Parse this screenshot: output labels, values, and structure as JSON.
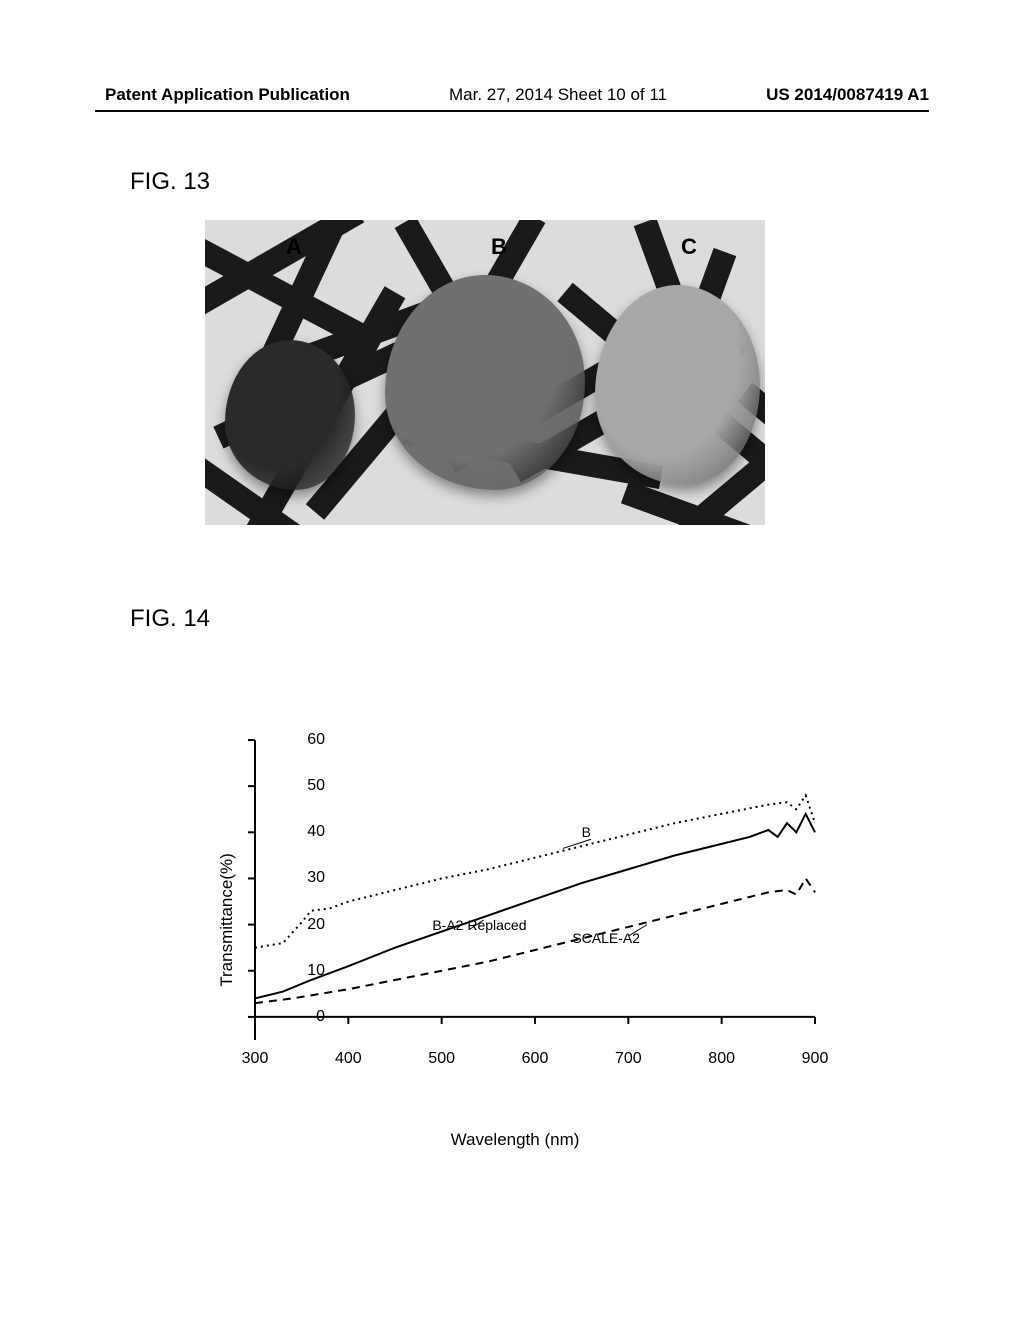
{
  "header": {
    "left": "Patent Application Publication",
    "center": "Mar. 27, 2014  Sheet 10 of 11",
    "right": "US 2014/0087419 A1"
  },
  "fig13": {
    "label": "FIG. 13",
    "photo_labels": {
      "a": "A",
      "b": "B",
      "c": "C"
    },
    "organ_colors": {
      "a": "#2a2a2a",
      "b": "#707070",
      "c": "#a8a8a8"
    },
    "mesh_color": "#1a1a1a",
    "bg_color": "#dcdcdc"
  },
  "fig14": {
    "label": "FIG. 14",
    "ylabel": "Transmittance(%)",
    "xlabel": "Wavelength (nm)",
    "xlim": [
      300,
      900
    ],
    "ylim": [
      -5,
      60
    ],
    "xticks": [
      300,
      400,
      500,
      600,
      700,
      800,
      900
    ],
    "yticks": [
      0,
      10,
      20,
      30,
      40,
      50,
      60
    ],
    "axis_color": "#000000",
    "background_color": "#ffffff",
    "series": {
      "B": {
        "label": "B",
        "color": "#000000",
        "dash": "2,4",
        "width": 2,
        "data": [
          [
            300,
            15
          ],
          [
            330,
            16
          ],
          [
            350,
            20.5
          ],
          [
            360,
            23
          ],
          [
            380,
            23.5
          ],
          [
            400,
            25
          ],
          [
            450,
            27.5
          ],
          [
            500,
            30
          ],
          [
            550,
            32
          ],
          [
            600,
            34.5
          ],
          [
            650,
            37
          ],
          [
            700,
            39.5
          ],
          [
            750,
            42
          ],
          [
            800,
            44
          ],
          [
            850,
            46
          ],
          [
            870,
            46.5
          ],
          [
            880,
            45
          ],
          [
            890,
            48
          ],
          [
            900,
            42
          ]
        ]
      },
      "B_A2_Replaced": {
        "label": "B-A2 Replaced",
        "color": "#000000",
        "dash": "none",
        "width": 2,
        "data": [
          [
            300,
            4
          ],
          [
            330,
            5.5
          ],
          [
            360,
            8
          ],
          [
            400,
            11
          ],
          [
            450,
            15
          ],
          [
            500,
            18.5
          ],
          [
            550,
            22
          ],
          [
            600,
            25.5
          ],
          [
            650,
            29
          ],
          [
            700,
            32
          ],
          [
            750,
            35
          ],
          [
            800,
            37.5
          ],
          [
            830,
            39
          ],
          [
            850,
            40.5
          ],
          [
            860,
            39
          ],
          [
            870,
            42
          ],
          [
            880,
            40
          ],
          [
            890,
            44
          ],
          [
            900,
            40
          ]
        ]
      },
      "SCALE_A2": {
        "label": "SCALE-A2",
        "color": "#000000",
        "dash": "8,6",
        "width": 2,
        "data": [
          [
            300,
            3
          ],
          [
            340,
            4
          ],
          [
            370,
            5
          ],
          [
            400,
            6
          ],
          [
            450,
            8
          ],
          [
            500,
            10
          ],
          [
            550,
            12
          ],
          [
            600,
            14.5
          ],
          [
            650,
            17
          ],
          [
            700,
            19.5
          ],
          [
            750,
            22
          ],
          [
            800,
            24.5
          ],
          [
            850,
            27
          ],
          [
            870,
            27.5
          ],
          [
            880,
            26.5
          ],
          [
            890,
            30
          ],
          [
            900,
            27
          ]
        ]
      }
    },
    "label_positions": {
      "B": [
        650,
        40
      ],
      "B_A2_Replaced": [
        490,
        20
      ],
      "SCALE_A2": [
        640,
        17
      ]
    },
    "label_leader": {
      "B": [
        [
          660,
          38.5
        ],
        [
          630,
          36.5
        ]
      ],
      "B_A2_Replaced": [
        [
          530,
          19
        ],
        [
          545,
          21
        ]
      ],
      "SCALE_A2": [
        [
          700,
          17.5
        ],
        [
          720,
          20
        ]
      ]
    }
  }
}
